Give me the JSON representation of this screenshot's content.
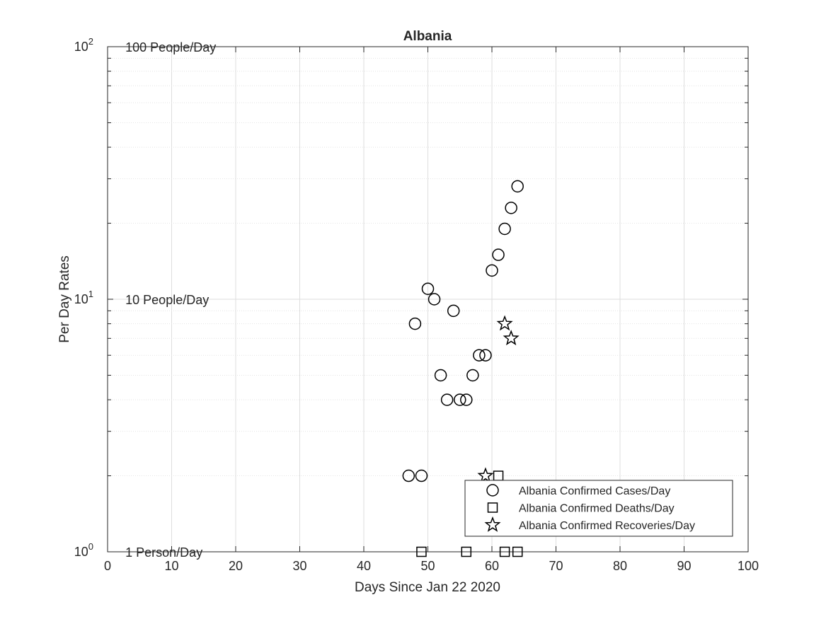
{
  "chart_data": {
    "type": "scatter",
    "title": "Albania",
    "xlabel": "Days Since Jan 22 2020",
    "ylabel": "Per Day Rates",
    "xlim": [
      0,
      100
    ],
    "ylim": [
      1,
      100
    ],
    "yscale": "log",
    "grid": true,
    "minor_grid": true,
    "x_ticks": [
      "0",
      "10",
      "20",
      "30",
      "40",
      "50",
      "60",
      "70",
      "80",
      "90",
      "100"
    ],
    "y_ticks": [
      {
        "base": "10",
        "exp": "0",
        "value": 1
      },
      {
        "base": "10",
        "exp": "1",
        "value": 10
      },
      {
        "base": "10",
        "exp": "2",
        "value": 100
      }
    ],
    "annotations": [
      {
        "text": "100 People/Day",
        "x": 3,
        "y": 100
      },
      {
        "text": "10 People/Day",
        "x": 3,
        "y": 10
      },
      {
        "text": "1 Person/Day",
        "x": 3,
        "y": 1
      }
    ],
    "legend": "bottom-right",
    "series": [
      {
        "name": "Albania Confirmed Cases/Day",
        "marker": "circle",
        "color": "#000000",
        "points": [
          [
            47,
            2
          ],
          [
            48,
            8
          ],
          [
            49,
            2
          ],
          [
            50,
            11
          ],
          [
            51,
            10
          ],
          [
            52,
            5
          ],
          [
            53,
            4
          ],
          [
            54,
            9
          ],
          [
            55,
            4
          ],
          [
            56,
            4
          ],
          [
            57,
            5
          ],
          [
            58,
            6
          ],
          [
            59,
            6
          ],
          [
            60,
            13
          ],
          [
            61,
            15
          ],
          [
            62,
            19
          ],
          [
            63,
            23
          ],
          [
            64,
            28
          ]
        ]
      },
      {
        "name": "Albania Confirmed Deaths/Day",
        "marker": "square",
        "color": "#000000",
        "points": [
          [
            49,
            1
          ],
          [
            56,
            1
          ],
          [
            61,
            2
          ],
          [
            62,
            1
          ],
          [
            64,
            1
          ]
        ]
      },
      {
        "name": "Albania Confirmed Recoveries/Day",
        "marker": "star",
        "color": "#000000",
        "points": [
          [
            59,
            2
          ],
          [
            62,
            8
          ],
          [
            63,
            7
          ]
        ]
      }
    ]
  }
}
